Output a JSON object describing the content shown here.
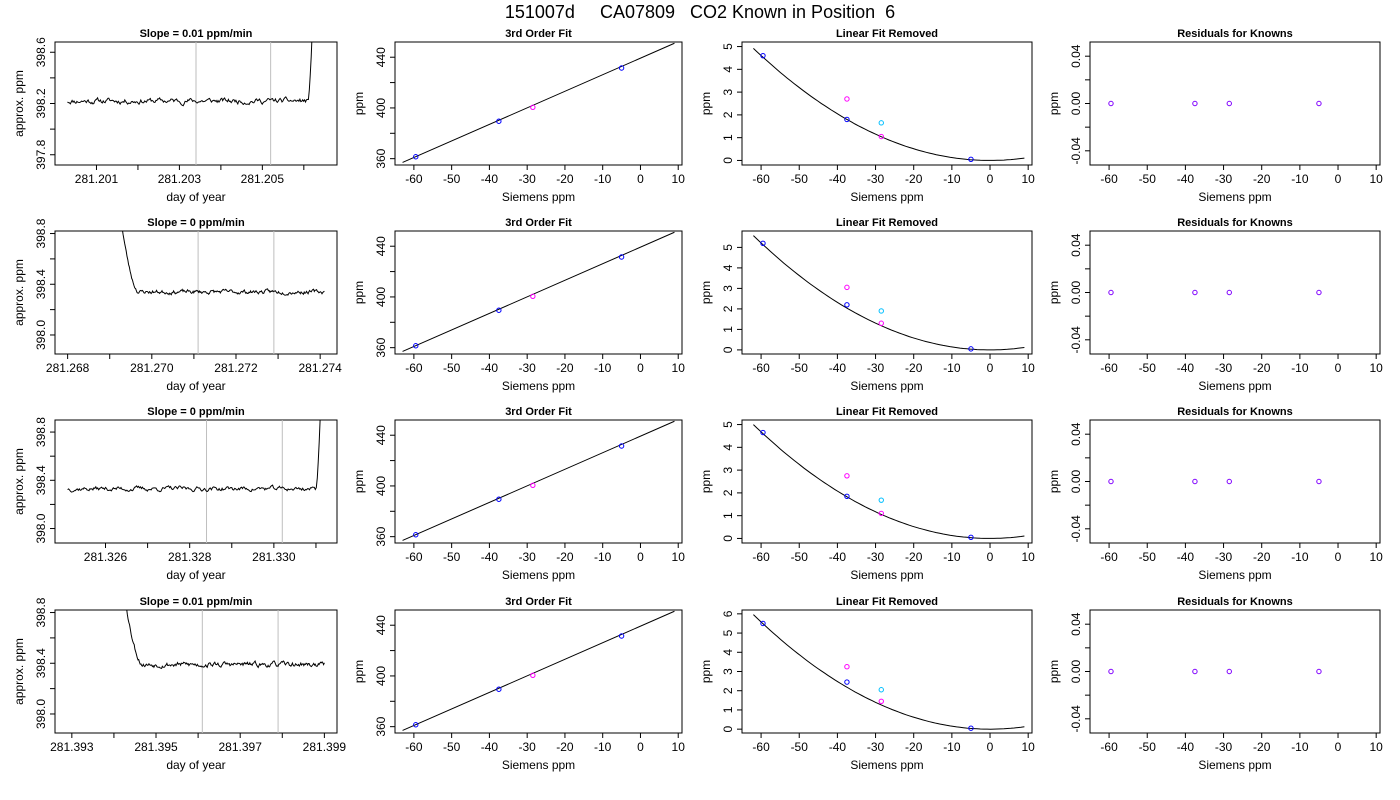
{
  "title": "151007d     CA07809   CO2 Known in Position  6",
  "colors": {
    "trace": "#000000",
    "fitline": "#000000",
    "vline": "#bebebe",
    "blue": "#0000ff",
    "magenta": "#ff00ff",
    "cyan": "#00bfff",
    "purple": "#8000ff",
    "frame": "#000000"
  },
  "chart_data": [
    {
      "type": "line",
      "title": "Slope =  0.01  ppm/min",
      "xlabel": "day of year",
      "ylabel": "approx. ppm",
      "xlim": [
        281.2,
        281.2068
      ],
      "ylim": [
        397.72,
        398.68
      ],
      "xticks": [
        281.201,
        281.202,
        281.203,
        281.204,
        281.205,
        281.206
      ],
      "xtick_labels": [
        "281.201",
        "",
        "281.203",
        "",
        "281.205",
        ""
      ],
      "yticks": [
        397.8,
        398.0,
        398.2,
        398.4,
        398.6
      ],
      "ytick_labels": [
        "397.8",
        "",
        "398.2",
        "",
        "398.6"
      ],
      "vlines": [
        281.2034,
        281.2052
      ],
      "trace": {
        "x_start": 281.2003,
        "x_plateau_end": 281.2061,
        "x_end": 281.2062,
        "level": 398.22,
        "noise": 0.02,
        "end_level": 398.74,
        "seed": 11
      }
    },
    {
      "type": "line",
      "title": "3rd Order Fit",
      "xlabel": "Siemens ppm",
      "ylabel": "ppm",
      "xlim": [
        -65,
        11
      ],
      "ylim": [
        355,
        452
      ],
      "xticks": [
        -60,
        -50,
        -40,
        -30,
        -20,
        -10,
        0,
        10
      ],
      "xtick_labels": [
        "-60",
        "-50",
        "-40",
        "-30",
        "-20",
        "-10",
        "0",
        "10"
      ],
      "yticks": [
        360,
        380,
        400,
        420,
        440
      ],
      "ytick_labels": [
        "360",
        "",
        "400",
        "",
        "440"
      ],
      "line": [
        [
          -63,
          357
        ],
        [
          9,
          451
        ]
      ],
      "points": [
        {
          "x": -59.5,
          "y": 361.5,
          "color": "blue"
        },
        {
          "x": -37.5,
          "y": 389.5,
          "color": "blue"
        },
        {
          "x": -28.5,
          "y": 400.5,
          "color": "magenta"
        },
        {
          "x": -5.0,
          "y": 431.5,
          "color": "blue"
        }
      ]
    },
    {
      "type": "scatter",
      "title": "Linear Fit Removed",
      "xlabel": "Siemens ppm",
      "ylabel": "ppm",
      "xlim": [
        -65,
        11
      ],
      "ylim": [
        -0.2,
        5.2
      ],
      "xticks": [
        -60,
        -50,
        -40,
        -30,
        -20,
        -10,
        0,
        10
      ],
      "xtick_labels": [
        "-60",
        "-50",
        "-40",
        "-30",
        "-20",
        "-10",
        "0",
        "10"
      ],
      "yticks": [
        0,
        1,
        2,
        3,
        4,
        5
      ],
      "ytick_labels": [
        "0",
        "1",
        "2",
        "3",
        "4",
        "5"
      ],
      "curve": {
        "a": 0.00128,
        "x0": 0,
        "x_from": -62,
        "x_to": 9
      },
      "points": [
        {
          "x": -59.5,
          "y": 4.6,
          "color": "blue"
        },
        {
          "x": -37.5,
          "y": 2.7,
          "color": "magenta"
        },
        {
          "x": -37.5,
          "y": 1.8,
          "color": "blue"
        },
        {
          "x": -28.5,
          "y": 1.65,
          "color": "cyan"
        },
        {
          "x": -28.5,
          "y": 1.05,
          "color": "magenta"
        },
        {
          "x": -5.0,
          "y": 0.05,
          "color": "blue"
        }
      ]
    },
    {
      "type": "scatter",
      "title": "Residuals for Knowns",
      "xlabel": "Siemens ppm",
      "ylabel": "ppm",
      "xlim": [
        -65,
        11
      ],
      "ylim": [
        -0.052,
        0.052
      ],
      "xticks": [
        -60,
        -50,
        -40,
        -30,
        -20,
        -10,
        0,
        10
      ],
      "xtick_labels": [
        "-60",
        "-50",
        "-40",
        "-30",
        "-20",
        "-10",
        "0",
        "10"
      ],
      "yticks": [
        -0.04,
        -0.02,
        0.0,
        0.02,
        0.04
      ],
      "ytick_labels": [
        "-0.04",
        "",
        "0.00",
        "",
        "0.04"
      ],
      "points": [
        {
          "x": -59.5,
          "y": 0,
          "color": "purple"
        },
        {
          "x": -37.5,
          "y": 0,
          "color": "purple"
        },
        {
          "x": -28.5,
          "y": 0,
          "color": "purple"
        },
        {
          "x": -5.0,
          "y": 0,
          "color": "purple"
        }
      ]
    },
    {
      "type": "line",
      "title": "Slope =  0  ppm/min",
      "xlabel": "day of year",
      "ylabel": "approx. ppm",
      "xlim": [
        281.2677,
        281.2744
      ],
      "ylim": [
        397.85,
        398.82
      ],
      "xticks": [
        281.268,
        281.269,
        281.27,
        281.271,
        281.272,
        281.273,
        281.274
      ],
      "xtick_labels": [
        "281.268",
        "",
        "281.270",
        "",
        "281.272",
        "",
        "281.274"
      ],
      "yticks": [
        398.0,
        398.2,
        398.4,
        398.6,
        398.8
      ],
      "ytick_labels": [
        "398.0",
        "",
        "398.4",
        "",
        "398.8"
      ],
      "vlines": [
        281.2711,
        281.2729
      ],
      "trace": {
        "x_start": 281.2693,
        "x_plateau_start": 281.2697,
        "x_end": 281.2741,
        "level": 398.34,
        "noise": 0.015,
        "start_level": 398.84,
        "seed": 23
      }
    },
    {
      "type": "line",
      "title": "3rd Order Fit",
      "xlabel": "Siemens ppm",
      "ylabel": "ppm",
      "xlim": [
        -65,
        11
      ],
      "ylim": [
        355,
        452
      ],
      "xticks": [
        -60,
        -50,
        -40,
        -30,
        -20,
        -10,
        0,
        10
      ],
      "xtick_labels": [
        "-60",
        "-50",
        "-40",
        "-30",
        "-20",
        "-10",
        "0",
        "10"
      ],
      "yticks": [
        360,
        380,
        400,
        420,
        440
      ],
      "ytick_labels": [
        "360",
        "",
        "400",
        "",
        "440"
      ],
      "line": [
        [
          -63,
          357
        ],
        [
          9,
          451
        ]
      ],
      "points": [
        {
          "x": -59.5,
          "y": 361.5,
          "color": "blue"
        },
        {
          "x": -37.5,
          "y": 389.5,
          "color": "blue"
        },
        {
          "x": -28.5,
          "y": 400.5,
          "color": "magenta"
        },
        {
          "x": -5.0,
          "y": 431.5,
          "color": "blue"
        }
      ]
    },
    {
      "type": "scatter",
      "title": "Linear Fit Removed",
      "xlabel": "Siemens ppm",
      "ylabel": "ppm",
      "xlim": [
        -65,
        11
      ],
      "ylim": [
        -0.2,
        5.8
      ],
      "xticks": [
        -60,
        -50,
        -40,
        -30,
        -20,
        -10,
        0,
        10
      ],
      "xtick_labels": [
        "-60",
        "-50",
        "-40",
        "-30",
        "-20",
        "-10",
        "0",
        "10"
      ],
      "yticks": [
        0,
        1,
        2,
        3,
        4,
        5
      ],
      "ytick_labels": [
        "0",
        "1",
        "2",
        "3",
        "4",
        "5"
      ],
      "curve": {
        "a": 0.00145,
        "x0": 0,
        "x_from": -62,
        "x_to": 9
      },
      "points": [
        {
          "x": -59.5,
          "y": 5.2,
          "color": "blue"
        },
        {
          "x": -37.5,
          "y": 3.05,
          "color": "magenta"
        },
        {
          "x": -37.5,
          "y": 2.2,
          "color": "blue"
        },
        {
          "x": -28.5,
          "y": 1.9,
          "color": "cyan"
        },
        {
          "x": -28.5,
          "y": 1.3,
          "color": "magenta"
        },
        {
          "x": -5.0,
          "y": 0.05,
          "color": "blue"
        }
      ]
    },
    {
      "type": "scatter",
      "title": "Residuals for Knowns",
      "xlabel": "Siemens ppm",
      "ylabel": "ppm",
      "xlim": [
        -65,
        11
      ],
      "ylim": [
        -0.052,
        0.052
      ],
      "xticks": [
        -60,
        -50,
        -40,
        -30,
        -20,
        -10,
        0,
        10
      ],
      "xtick_labels": [
        "-60",
        "-50",
        "-40",
        "-30",
        "-20",
        "-10",
        "0",
        "10"
      ],
      "yticks": [
        -0.04,
        -0.02,
        0.0,
        0.02,
        0.04
      ],
      "ytick_labels": [
        "-0.04",
        "",
        "0.00",
        "",
        "0.04"
      ],
      "points": [
        {
          "x": -59.5,
          "y": 0,
          "color": "purple"
        },
        {
          "x": -37.5,
          "y": 0,
          "color": "purple"
        },
        {
          "x": -28.5,
          "y": 0,
          "color": "purple"
        },
        {
          "x": -5.0,
          "y": 0,
          "color": "purple"
        }
      ]
    },
    {
      "type": "line",
      "title": "Slope =  0  ppm/min",
      "xlabel": "day of year",
      "ylabel": "approx. ppm",
      "xlim": [
        281.3248,
        281.3315
      ],
      "ylim": [
        397.88,
        398.9
      ],
      "xticks": [
        281.326,
        281.327,
        281.328,
        281.329,
        281.33,
        281.331
      ],
      "xtick_labels": [
        "281.326",
        "",
        "281.328",
        "",
        "281.330",
        ""
      ],
      "yticks": [
        398.0,
        398.2,
        398.4,
        398.6,
        398.8
      ],
      "ytick_labels": [
        "398.0",
        "",
        "398.4",
        "",
        "398.8"
      ],
      "vlines": [
        281.3284,
        281.3302
      ],
      "trace": {
        "x_start": 281.3251,
        "x_plateau_end": 281.331,
        "x_end": 281.3311,
        "level": 398.33,
        "noise": 0.018,
        "end_level": 398.92,
        "seed": 37
      }
    },
    {
      "type": "line",
      "title": "3rd Order Fit",
      "xlabel": "Siemens ppm",
      "ylabel": "ppm",
      "xlim": [
        -65,
        11
      ],
      "ylim": [
        355,
        452
      ],
      "xticks": [
        -60,
        -50,
        -40,
        -30,
        -20,
        -10,
        0,
        10
      ],
      "xtick_labels": [
        "-60",
        "-50",
        "-40",
        "-30",
        "-20",
        "-10",
        "0",
        "10"
      ],
      "yticks": [
        360,
        380,
        400,
        420,
        440
      ],
      "ytick_labels": [
        "360",
        "",
        "400",
        "",
        "440"
      ],
      "line": [
        [
          -63,
          357
        ],
        [
          9,
          451
        ]
      ],
      "points": [
        {
          "x": -59.5,
          "y": 361.5,
          "color": "blue"
        },
        {
          "x": -37.5,
          "y": 389.5,
          "color": "blue"
        },
        {
          "x": -28.5,
          "y": 400.5,
          "color": "magenta"
        },
        {
          "x": -5.0,
          "y": 431.5,
          "color": "blue"
        }
      ]
    },
    {
      "type": "scatter",
      "title": "Linear Fit Removed",
      "xlabel": "Siemens ppm",
      "ylabel": "ppm",
      "xlim": [
        -65,
        11
      ],
      "ylim": [
        -0.2,
        5.2
      ],
      "xticks": [
        -60,
        -50,
        -40,
        -30,
        -20,
        -10,
        0,
        10
      ],
      "xtick_labels": [
        "-60",
        "-50",
        "-40",
        "-30",
        "-20",
        "-10",
        "0",
        "10"
      ],
      "yticks": [
        0,
        1,
        2,
        3,
        4,
        5
      ],
      "ytick_labels": [
        "0",
        "1",
        "2",
        "3",
        "4",
        "5"
      ],
      "curve": {
        "a": 0.0013,
        "x0": 0,
        "x_from": -62,
        "x_to": 9
      },
      "points": [
        {
          "x": -59.5,
          "y": 4.65,
          "color": "blue"
        },
        {
          "x": -37.5,
          "y": 2.75,
          "color": "magenta"
        },
        {
          "x": -37.5,
          "y": 1.85,
          "color": "blue"
        },
        {
          "x": -28.5,
          "y": 1.68,
          "color": "cyan"
        },
        {
          "x": -28.5,
          "y": 1.1,
          "color": "magenta"
        },
        {
          "x": -5.0,
          "y": 0.05,
          "color": "blue"
        }
      ]
    },
    {
      "type": "scatter",
      "title": "Residuals for Knowns",
      "xlabel": "Siemens ppm",
      "ylabel": "ppm",
      "xlim": [
        -65,
        11
      ],
      "ylim": [
        -0.052,
        0.052
      ],
      "xticks": [
        -60,
        -50,
        -40,
        -30,
        -20,
        -10,
        0,
        10
      ],
      "xtick_labels": [
        "-60",
        "-50",
        "-40",
        "-30",
        "-20",
        "-10",
        "0",
        "10"
      ],
      "yticks": [
        -0.04,
        -0.02,
        0.0,
        0.02,
        0.04
      ],
      "ytick_labels": [
        "-0.04",
        "",
        "0.00",
        "",
        "0.04"
      ],
      "points": [
        {
          "x": -59.5,
          "y": 0,
          "color": "purple"
        },
        {
          "x": -37.5,
          "y": 0,
          "color": "purple"
        },
        {
          "x": -28.5,
          "y": 0,
          "color": "purple"
        },
        {
          "x": -5.0,
          "y": 0,
          "color": "purple"
        }
      ]
    },
    {
      "type": "line",
      "title": "Slope =  0.01  ppm/min",
      "xlabel": "day of year",
      "ylabel": "approx. ppm",
      "xlim": [
        281.3926,
        281.3993
      ],
      "ylim": [
        397.85,
        398.82
      ],
      "xticks": [
        281.393,
        281.394,
        281.395,
        281.396,
        281.397,
        281.398,
        281.399
      ],
      "xtick_labels": [
        "281.393",
        "",
        "281.395",
        "",
        "281.397",
        "",
        "281.399"
      ],
      "yticks": [
        398.0,
        398.2,
        398.4,
        398.6,
        398.8
      ],
      "ytick_labels": [
        "398.0",
        "",
        "398.4",
        "",
        "398.8"
      ],
      "vlines": [
        281.3961,
        281.3979
      ],
      "trace": {
        "x_start": 281.3943,
        "x_plateau_start": 281.3947,
        "x_end": 281.399,
        "level": 398.39,
        "noise": 0.018,
        "start_level": 398.84,
        "seed": 53
      }
    },
    {
      "type": "line",
      "title": "3rd Order Fit",
      "xlabel": "Siemens ppm",
      "ylabel": "ppm",
      "xlim": [
        -65,
        11
      ],
      "ylim": [
        355,
        452
      ],
      "xticks": [
        -60,
        -50,
        -40,
        -30,
        -20,
        -10,
        0,
        10
      ],
      "xtick_labels": [
        "-60",
        "-50",
        "-40",
        "-30",
        "-20",
        "-10",
        "0",
        "10"
      ],
      "yticks": [
        360,
        380,
        400,
        420,
        440
      ],
      "ytick_labels": [
        "360",
        "",
        "400",
        "",
        "440"
      ],
      "line": [
        [
          -63,
          357
        ],
        [
          9,
          451
        ]
      ],
      "points": [
        {
          "x": -59.5,
          "y": 361.5,
          "color": "blue"
        },
        {
          "x": -37.5,
          "y": 389.5,
          "color": "blue"
        },
        {
          "x": -28.5,
          "y": 400.5,
          "color": "magenta"
        },
        {
          "x": -5.0,
          "y": 431.5,
          "color": "blue"
        }
      ]
    },
    {
      "type": "scatter",
      "title": "Linear Fit Removed",
      "xlabel": "Siemens ppm",
      "ylabel": "ppm",
      "xlim": [
        -65,
        11
      ],
      "ylim": [
        -0.2,
        6.2
      ],
      "xticks": [
        -60,
        -50,
        -40,
        -30,
        -20,
        -10,
        0,
        10
      ],
      "xtick_labels": [
        "-60",
        "-50",
        "-40",
        "-30",
        "-20",
        "-10",
        "0",
        "10"
      ],
      "yticks": [
        0,
        1,
        2,
        3,
        4,
        5,
        6
      ],
      "ytick_labels": [
        "0",
        "1",
        "2",
        "3",
        "4",
        "5",
        "6"
      ],
      "curve": {
        "a": 0.00155,
        "x0": 0,
        "x_from": -62,
        "x_to": 9
      },
      "points": [
        {
          "x": -59.5,
          "y": 5.5,
          "color": "blue"
        },
        {
          "x": -37.5,
          "y": 3.25,
          "color": "magenta"
        },
        {
          "x": -37.5,
          "y": 2.45,
          "color": "blue"
        },
        {
          "x": -28.5,
          "y": 2.05,
          "color": "cyan"
        },
        {
          "x": -28.5,
          "y": 1.45,
          "color": "magenta"
        },
        {
          "x": -5.0,
          "y": 0.05,
          "color": "blue"
        }
      ]
    },
    {
      "type": "scatter",
      "title": "Residuals for Knowns",
      "xlabel": "Siemens ppm",
      "ylabel": "ppm",
      "xlim": [
        -65,
        11
      ],
      "ylim": [
        -0.052,
        0.052
      ],
      "xticks": [
        -60,
        -50,
        -40,
        -30,
        -20,
        -10,
        0,
        10
      ],
      "xtick_labels": [
        "-60",
        "-50",
        "-40",
        "-30",
        "-20",
        "-10",
        "0",
        "10"
      ],
      "yticks": [
        -0.04,
        -0.02,
        0.0,
        0.02,
        0.04
      ],
      "ytick_labels": [
        "-0.04",
        "",
        "0.00",
        "",
        "0.04"
      ],
      "points": [
        {
          "x": -59.5,
          "y": 0,
          "color": "purple"
        },
        {
          "x": -37.5,
          "y": 0,
          "color": "purple"
        },
        {
          "x": -28.5,
          "y": 0,
          "color": "purple"
        },
        {
          "x": -5.0,
          "y": 0,
          "color": "purple"
        }
      ]
    }
  ]
}
